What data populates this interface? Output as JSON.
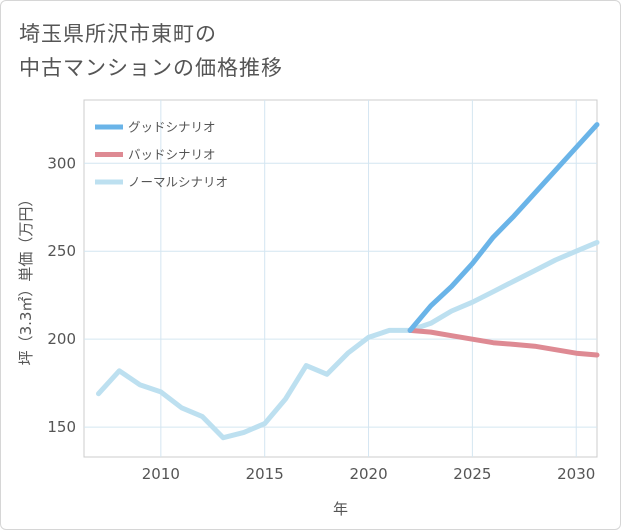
{
  "chart_data": {
    "type": "line",
    "title": "埼玉県所沢市東町の\n中古マンションの価格推移",
    "xlabel": "年",
    "ylabel": "坪（3.3㎡）単価（万円）",
    "xlim": [
      2006.3,
      2031
    ],
    "ylim": [
      133,
      336
    ],
    "x_ticks": [
      2010,
      2015,
      2020,
      2025,
      2030
    ],
    "y_ticks": [
      150,
      200,
      250,
      300
    ],
    "grid": true,
    "legend_position": "top-left",
    "series": [
      {
        "name": "グッドシナリオ",
        "color": "#6ab4e8",
        "x": [
          2022,
          2023,
          2024,
          2025,
          2026,
          2027,
          2028,
          2029,
          2030,
          2031
        ],
        "values": [
          205,
          219,
          230,
          243,
          258,
          270,
          283,
          296,
          309,
          322
        ]
      },
      {
        "name": "バッドシナリオ",
        "color": "#de8a93",
        "x": [
          2022,
          2023,
          2024,
          2025,
          2026,
          2027,
          2028,
          2029,
          2030,
          2031
        ],
        "values": [
          205,
          204,
          202,
          200,
          198,
          197,
          196,
          194,
          192,
          191
        ]
      },
      {
        "name": "ノーマルシナリオ",
        "color": "#bde0f0",
        "x": [
          2007,
          2008,
          2009,
          2010,
          2011,
          2012,
          2013,
          2014,
          2015,
          2016,
          2017,
          2018,
          2019,
          2020,
          2021,
          2022,
          2023,
          2024,
          2025,
          2026,
          2027,
          2028,
          2029,
          2030,
          2031
        ],
        "values": [
          169,
          182,
          174,
          170,
          161,
          156,
          144,
          147,
          152,
          166,
          185,
          180,
          192,
          201,
          205,
          205,
          209,
          216,
          221,
          227,
          233,
          239,
          245,
          250,
          255
        ]
      }
    ]
  }
}
